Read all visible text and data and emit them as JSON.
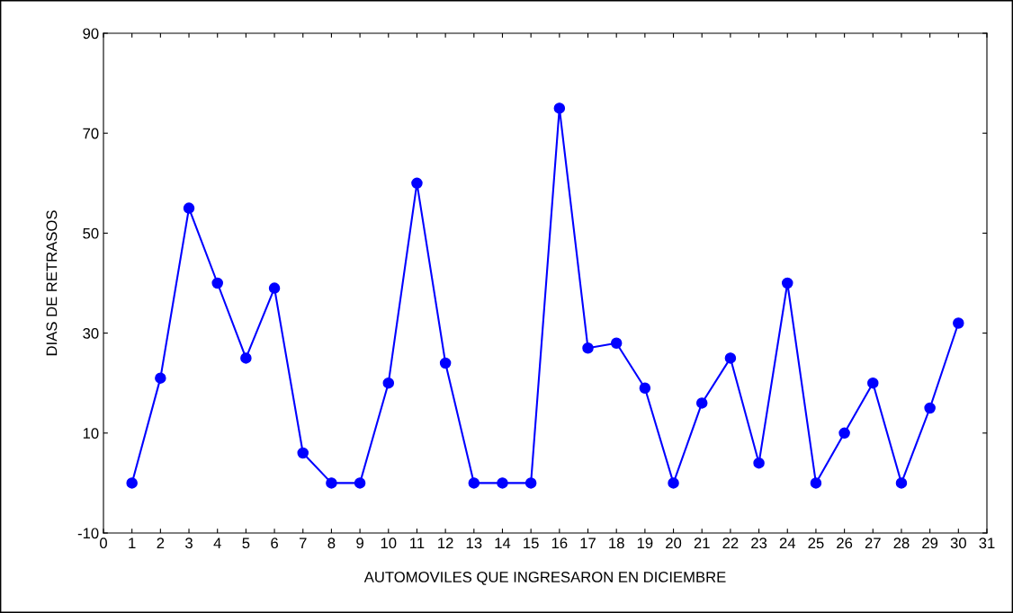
{
  "chart_data": {
    "type": "line",
    "xlabel": "AUTOMOVILES QUE INGRESARON EN DICIEMBRE",
    "ylabel": "DIAS DE RETRASOS",
    "x": [
      1,
      2,
      3,
      4,
      5,
      6,
      7,
      8,
      9,
      10,
      11,
      12,
      13,
      14,
      15,
      16,
      17,
      18,
      19,
      20,
      21,
      22,
      23,
      24,
      25,
      26,
      27,
      28,
      29,
      30
    ],
    "series": [
      {
        "color": "#0000ff",
        "values": [
          0,
          21,
          55,
          40,
          25,
          39,
          6,
          0,
          0,
          20,
          60,
          24,
          0,
          0,
          0,
          75,
          27,
          28,
          19,
          0,
          16,
          25,
          4,
          40,
          0,
          10,
          20,
          0,
          15,
          32
        ]
      }
    ],
    "xlim": [
      0,
      31
    ],
    "xticks": [
      0,
      1,
      2,
      3,
      4,
      5,
      6,
      7,
      8,
      9,
      10,
      11,
      12,
      13,
      14,
      15,
      16,
      17,
      18,
      19,
      20,
      21,
      22,
      23,
      24,
      25,
      26,
      27,
      28,
      29,
      30,
      31
    ],
    "ylim": [
      -10,
      90
    ],
    "yticks": [
      -10,
      10,
      30,
      50,
      70,
      90
    ],
    "grid": false,
    "legend": false,
    "marker": "circle",
    "line_style": "solid"
  }
}
